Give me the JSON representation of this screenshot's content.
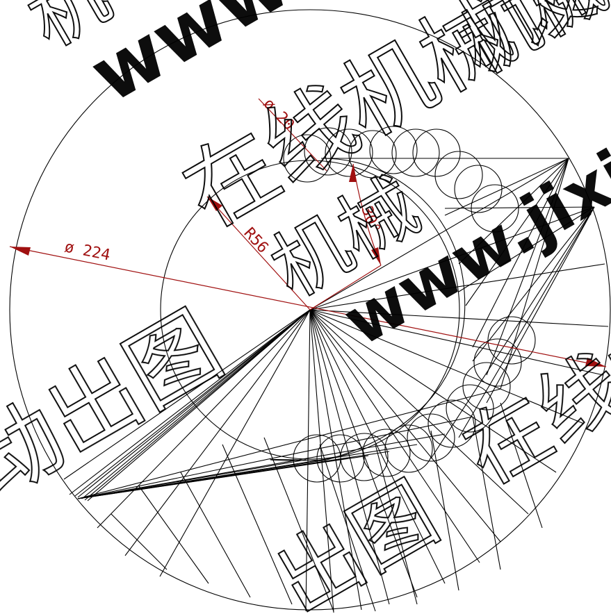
{
  "dimensions": {
    "outer_diameter": "ø 224",
    "inner_radius": "R56",
    "roller_diameter": "ø 20",
    "angle": "30°"
  },
  "watermark": {
    "url_text": "www.jixie",
    "url_text_b": "www",
    "cn_site": "在线机械设计",
    "cn_jixie": "机械",
    "cn_ji": "机",
    "cn_dongchu": "动出图",
    "cn_chutu": "出图"
  },
  "colors": {
    "line": "#000000",
    "dimension": "#a01010",
    "background": "#ffffff"
  }
}
